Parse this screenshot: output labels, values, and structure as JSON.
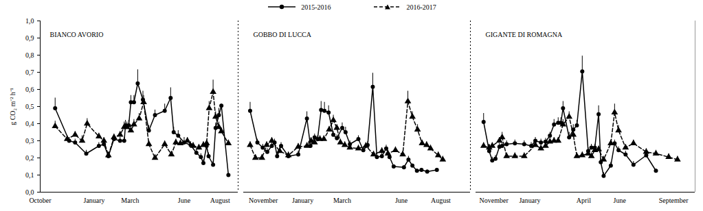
{
  "chart_data": [
    {
      "type": "line",
      "title": "BIANCO AVORIO",
      "ylabel": "g CO₂ m⁻² h⁻¹",
      "legend": "top",
      "xlim": [
        0,
        11
      ],
      "xticks": [
        {
          "value": 0,
          "label": "October"
        },
        {
          "value": 3,
          "label": "January"
        },
        {
          "value": 5,
          "label": "March"
        },
        {
          "value": 8,
          "label": "June"
        },
        {
          "value": 10,
          "label": "August"
        }
      ],
      "ylim": [
        0,
        1
      ],
      "yticks": [
        {
          "value": 0,
          "label": "0,0"
        },
        {
          "value": 0.1,
          "label": "0,1"
        },
        {
          "value": 0.2,
          "label": "0,2"
        },
        {
          "value": 0.3,
          "label": "0,3"
        },
        {
          "value": 0.4,
          "label": "0,4"
        },
        {
          "value": 0.5,
          "label": "0,5"
        },
        {
          "value": 0.6,
          "label": "0,6"
        },
        {
          "value": 0.7,
          "label": "0,7"
        },
        {
          "value": 0.8,
          "label": "0,8"
        },
        {
          "value": 0.9,
          "label": "0,9"
        },
        {
          "value": 1,
          "label": "1,0"
        }
      ],
      "series": [
        {
          "name": "2015-2016",
          "color": "#000000",
          "marker": "circle",
          "line_style": "solid",
          "x": [
            0.83,
            1.61,
            1.94,
            2.56,
            3.26,
            3.54,
            3.79,
            4.1,
            4.44,
            4.67,
            4.74,
            4.92,
            5.04,
            5.21,
            5.42,
            5.71,
            6.04,
            6.38,
            6.92,
            7.25,
            7.42,
            7.67,
            8.0,
            8.36,
            8.68,
            8.93,
            9.07,
            9.25,
            9.36,
            9.61,
            9.75,
            9.93,
            10.07,
            10.46
          ],
          "values": [
            0.49,
            0.3,
            0.29,
            0.225,
            0.27,
            0.28,
            0.21,
            0.31,
            0.3,
            0.3,
            0.39,
            0.39,
            0.525,
            0.525,
            0.635,
            0.54,
            0.36,
            0.45,
            0.475,
            0.55,
            0.35,
            0.33,
            0.29,
            0.275,
            0.23,
            0.205,
            0.17,
            0.27,
            0.21,
            0.16,
            0.375,
            0.45,
            0.505,
            0.1
          ],
          "errors": [
            0.06,
            0.02,
            0.02,
            0.02,
            0.02,
            0.02,
            0.02,
            0.02,
            0.02,
            0.02,
            0.03,
            0.03,
            0.04,
            0.04,
            0.08,
            0.05,
            0.03,
            0.03,
            0.04,
            0.06,
            0.03,
            0.03,
            0.03,
            0.02,
            0.02,
            0.02,
            0.02,
            0.02,
            0.02,
            0.02,
            0.03,
            0.04,
            0.01,
            0.01
          ]
        },
        {
          "name": "2016-2017",
          "color": "#000000",
          "marker": "triangle",
          "line_style": "dashed",
          "x": [
            0.83,
            1.5,
            1.94,
            2.33,
            2.61,
            3.26,
            3.54,
            3.79,
            4.1,
            4.44,
            4.67,
            4.82,
            5.04,
            5.21,
            5.5,
            5.75,
            6.04,
            6.38,
            6.92,
            7.29,
            7.54,
            7.79,
            8.18,
            8.5,
            8.82,
            9.07,
            9.25,
            9.39,
            9.61,
            9.75,
            9.93,
            10.07,
            10.46
          ],
          "values": [
            0.385,
            0.31,
            0.335,
            0.3,
            0.4,
            0.325,
            0.3,
            0.215,
            0.32,
            0.335,
            0.38,
            0.38,
            0.36,
            0.395,
            0.43,
            0.525,
            0.28,
            0.2,
            0.28,
            0.22,
            0.29,
            0.285,
            0.3,
            0.27,
            0.26,
            0.275,
            0.285,
            0.49,
            0.585,
            0.44,
            0.38,
            0.355,
            0.285
          ],
          "errors": [
            0.03,
            0.02,
            0.02,
            0.03,
            0.03,
            0.02,
            0.02,
            0.02,
            0.02,
            0.02,
            0.03,
            0.03,
            0.03,
            0.03,
            0.03,
            0.04,
            0.02,
            0.02,
            0.02,
            0.02,
            0.02,
            0.02,
            0.02,
            0.02,
            0.02,
            0.02,
            0.02,
            0.04,
            0.07,
            0.03,
            0.03,
            0.02,
            0.02
          ]
        }
      ]
    },
    {
      "type": "line",
      "title": "GOBBO DI LUCCA",
      "tick_labels": "x",
      "xlim": [
        -1,
        10.5
      ],
      "xticks": [
        {
          "value": 0,
          "label": "November"
        },
        {
          "value": 2,
          "label": "January"
        },
        {
          "value": 4,
          "label": "March"
        },
        {
          "value": 7,
          "label": "June"
        },
        {
          "value": 9,
          "label": "August"
        }
      ],
      "ylim": [
        0,
        1
      ],
      "series": [
        {
          "name": "2015-2016",
          "color": "#000000",
          "marker": "circle",
          "line_style": "solid",
          "x": [
            -0.67,
            -0.3,
            -0.03,
            0.2,
            0.43,
            0.57,
            0.7,
            0.9,
            1.27,
            1.77,
            2.21,
            2.39,
            2.6,
            2.75,
            2.93,
            3.1,
            3.31,
            3.55,
            3.73,
            4.0,
            4.17,
            4.39,
            4.82,
            5.07,
            5.29,
            5.55,
            5.76,
            6.01,
            6.23,
            6.4,
            6.61,
            7.13,
            7.36,
            7.56,
            7.79,
            8.02,
            8.31,
            8.8
          ],
          "values": [
            0.475,
            0.29,
            0.26,
            0.235,
            0.27,
            0.29,
            0.21,
            0.27,
            0.21,
            0.22,
            0.43,
            0.27,
            0.32,
            0.31,
            0.48,
            0.475,
            0.465,
            0.335,
            0.315,
            0.375,
            0.35,
            0.28,
            0.31,
            0.245,
            0.275,
            0.615,
            0.205,
            0.21,
            0.255,
            0.205,
            0.15,
            0.145,
            0.19,
            0.155,
            0.125,
            0.13,
            0.12,
            0.13
          ],
          "errors": [
            0.05,
            0.02,
            0.02,
            0.02,
            0.02,
            0.02,
            0.02,
            0.02,
            0.02,
            0.02,
            0.04,
            0.02,
            0.02,
            0.02,
            0.05,
            0.05,
            0.04,
            0.02,
            0.02,
            0.03,
            0.03,
            0.02,
            0.02,
            0.02,
            0.02,
            0.08,
            0.02,
            0.02,
            0.02,
            0.02,
            0.01,
            0.01,
            0.02,
            0.01,
            0.01,
            0.01,
            0.01,
            0.01
          ]
        },
        {
          "name": "2016-2017",
          "color": "#000000",
          "marker": "triangle",
          "line_style": "dashed",
          "x": [
            -0.67,
            -0.4,
            -0.07,
            0.17,
            0.43,
            0.83,
            1.27,
            1.77,
            2.21,
            2.42,
            2.6,
            2.87,
            3.07,
            3.34,
            3.55,
            3.73,
            3.91,
            4.13,
            4.39,
            4.82,
            5.2,
            5.59,
            6.01,
            6.32,
            6.7,
            7.07,
            7.33,
            7.56,
            7.82,
            8.05,
            8.28,
            8.48,
            8.87,
            9.1
          ],
          "values": [
            0.275,
            0.2,
            0.2,
            0.275,
            0.3,
            0.24,
            0.215,
            0.265,
            0.27,
            0.3,
            0.29,
            0.31,
            0.31,
            0.365,
            0.42,
            0.375,
            0.29,
            0.275,
            0.26,
            0.255,
            0.27,
            0.22,
            0.24,
            0.225,
            0.245,
            0.22,
            0.53,
            0.44,
            0.365,
            0.285,
            0.275,
            0.255,
            0.215,
            0.19
          ],
          "errors": [
            0.02,
            0.02,
            0.02,
            0.02,
            0.02,
            0.02,
            0.02,
            0.02,
            0.02,
            0.02,
            0.02,
            0.02,
            0.02,
            0.02,
            0.03,
            0.02,
            0.02,
            0.02,
            0.02,
            0.02,
            0.02,
            0.02,
            0.02,
            0.02,
            0.02,
            0.02,
            0.06,
            0.03,
            0.03,
            0.02,
            0.02,
            0.02,
            0.02,
            0.02
          ]
        }
      ]
    },
    {
      "type": "line",
      "title": "GIGANTE DI ROMAGNA",
      "tick_labels": "x",
      "xlim": [
        -1,
        11.2
      ],
      "xticks": [
        {
          "value": 0,
          "label": "November"
        },
        {
          "value": 2,
          "label": "January"
        },
        {
          "value": 5,
          "label": "April"
        },
        {
          "value": 7,
          "label": "June"
        },
        {
          "value": 10,
          "label": "September"
        }
      ],
      "ylim": [
        0,
        1
      ],
      "series": [
        {
          "name": "2015-2016",
          "color": "#000000",
          "marker": "circle",
          "line_style": "solid",
          "x": [
            -0.57,
            -0.26,
            -0.09,
            0.09,
            0.31,
            0.46,
            0.71,
            1.17,
            1.69,
            2.08,
            2.31,
            2.62,
            2.88,
            3.12,
            3.35,
            3.58,
            3.73,
            3.85,
            4.19,
            4.42,
            4.62,
            4.92,
            5.25,
            5.43,
            5.62,
            5.83,
            5.95,
            6.11,
            6.51,
            6.72,
            6.94,
            7.33,
            7.77,
            8.48,
            9.02
          ],
          "values": [
            0.41,
            0.24,
            0.185,
            0.195,
            0.265,
            0.27,
            0.28,
            0.285,
            0.28,
            0.27,
            0.3,
            0.29,
            0.295,
            0.33,
            0.395,
            0.405,
            0.405,
            0.49,
            0.32,
            0.365,
            0.39,
            0.705,
            0.24,
            0.26,
            0.26,
            0.455,
            0.175,
            0.095,
            0.155,
            0.285,
            0.245,
            0.22,
            0.16,
            0.215,
            0.125
          ],
          "errors": [
            0.05,
            0.02,
            0.02,
            0.02,
            0.02,
            0.02,
            0.02,
            0.02,
            0.02,
            0.02,
            0.02,
            0.02,
            0.02,
            0.02,
            0.03,
            0.03,
            0.03,
            0.04,
            0.03,
            0.03,
            0.03,
            0.09,
            0.02,
            0.02,
            0.02,
            0.05,
            0.02,
            0.02,
            0.02,
            0.02,
            0.02,
            0.02,
            0.02,
            0.02,
            0.01
          ]
        },
        {
          "name": "2016-2017",
          "color": "#000000",
          "marker": "triangle",
          "line_style": "dashed",
          "x": [
            -0.57,
            -0.26,
            -0.09,
            0.31,
            0.46,
            0.71,
            1.17,
            1.69,
            2.31,
            2.62,
            2.88,
            3.12,
            3.35,
            3.58,
            3.85,
            4.19,
            4.42,
            4.62,
            4.92,
            5.25,
            5.43,
            5.62,
            5.83,
            6.11,
            6.51,
            6.72,
            6.94,
            7.33,
            7.77,
            8.48,
            9.02,
            9.73,
            10.22
          ],
          "values": [
            0.27,
            0.26,
            0.27,
            0.3,
            0.32,
            0.21,
            0.21,
            0.21,
            0.275,
            0.255,
            0.27,
            0.295,
            0.3,
            0.3,
            0.395,
            0.44,
            0.335,
            0.21,
            0.215,
            0.225,
            0.21,
            0.245,
            0.25,
            0.19,
            0.285,
            0.465,
            0.36,
            0.26,
            0.285,
            0.235,
            0.225,
            0.205,
            0.19
          ],
          "errors": [
            0.02,
            0.02,
            0.02,
            0.02,
            0.03,
            0.02,
            0.02,
            0.02,
            0.02,
            0.02,
            0.02,
            0.02,
            0.02,
            0.02,
            0.03,
            0.03,
            0.03,
            0.02,
            0.02,
            0.02,
            0.02,
            0.02,
            0.02,
            0.02,
            0.02,
            0.05,
            0.03,
            0.02,
            0.02,
            0.02,
            0.02,
            0.02,
            0.02
          ]
        }
      ]
    }
  ]
}
